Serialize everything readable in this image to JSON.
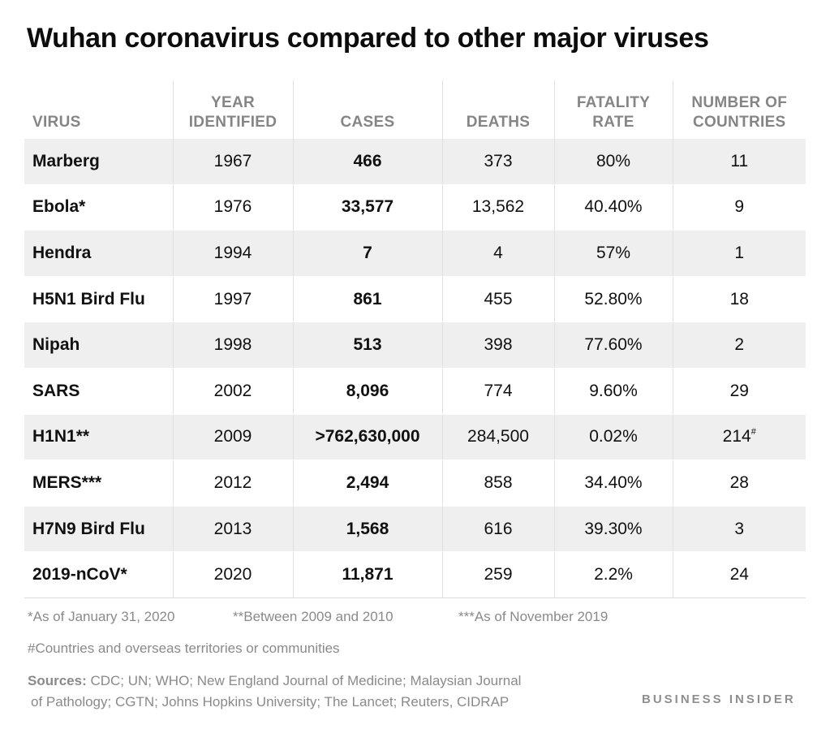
{
  "title": "Wuhan coronavirus compared to other major viruses",
  "chart_data": {
    "type": "table",
    "title": "Wuhan coronavirus compared to other major viruses",
    "columns": [
      "VIRUS",
      "YEAR IDENTIFIED",
      "CASES",
      "DEATHS",
      "FATALITY RATE",
      "NUMBER OF COUNTRIES"
    ],
    "rows": [
      {
        "virus": "Marberg",
        "year": "1967",
        "cases": "466",
        "deaths": "373",
        "rate": "80%",
        "countries": "11",
        "mark": ""
      },
      {
        "virus": "Ebola*",
        "year": "1976",
        "cases": "33,577",
        "deaths": "13,562",
        "rate": "40.40%",
        "countries": "9",
        "mark": ""
      },
      {
        "virus": "Hendra",
        "year": "1994",
        "cases": "7",
        "deaths": "4",
        "rate": "57%",
        "countries": "1",
        "mark": ""
      },
      {
        "virus": "H5N1 Bird Flu",
        "year": "1997",
        "cases": "861",
        "deaths": "455",
        "rate": "52.80%",
        "countries": "18",
        "mark": ""
      },
      {
        "virus": "Nipah",
        "year": "1998",
        "cases": "513",
        "deaths": "398",
        "rate": "77.60%",
        "countries": "2",
        "mark": ""
      },
      {
        "virus": "SARS",
        "year": "2002",
        "cases": "8,096",
        "deaths": "774",
        "rate": "9.60%",
        "countries": "29",
        "mark": ""
      },
      {
        "virus": "H1N1**",
        "year": "2009",
        "cases": ">762,630,000",
        "deaths": "284,500",
        "rate": "0.02%",
        "countries": "214",
        "mark": "#"
      },
      {
        "virus": "MERS***",
        "year": "2012",
        "cases": "2,494",
        "deaths": "858",
        "rate": "34.40%",
        "countries": "28",
        "mark": ""
      },
      {
        "virus": "H7N9 Bird Flu",
        "year": "2013",
        "cases": "1,568",
        "deaths": "616",
        "rate": "39.30%",
        "countries": "3",
        "mark": ""
      },
      {
        "virus": "2019-nCoV*",
        "year": "2020",
        "cases": "11,871",
        "deaths": "259",
        "rate": "2.2%",
        "countries": "24",
        "mark": ""
      }
    ]
  },
  "header": {
    "virus": "VIRUS",
    "year_1": "YEAR",
    "year_2": "IDENTIFIED",
    "cases": "CASES",
    "deaths": "DEATHS",
    "rate_1": "FATALITY",
    "rate_2": "RATE",
    "countries_1": "NUMBER OF",
    "countries_2": "COUNTRIES"
  },
  "notes": {
    "jan": "*As of January 31, 2020",
    "between": "**Between 2009 and 2010",
    "nov": "***As of November 2019",
    "hash": "#Countries and overseas territories or communities",
    "sources_label": "Sources:",
    "sources_line1": " CDC; UN; WHO; New England Journal of Medicine; Malaysian Journal",
    "sources_line2": "of Pathology; CGTN; Johns Hopkins University; The Lancet; Reuters, CIDRAP"
  },
  "brand": "BUSINESS INSIDER",
  "colors": {
    "row_shade": "#efefef",
    "header_text": "#858585",
    "note_text": "#8a8a8a"
  }
}
